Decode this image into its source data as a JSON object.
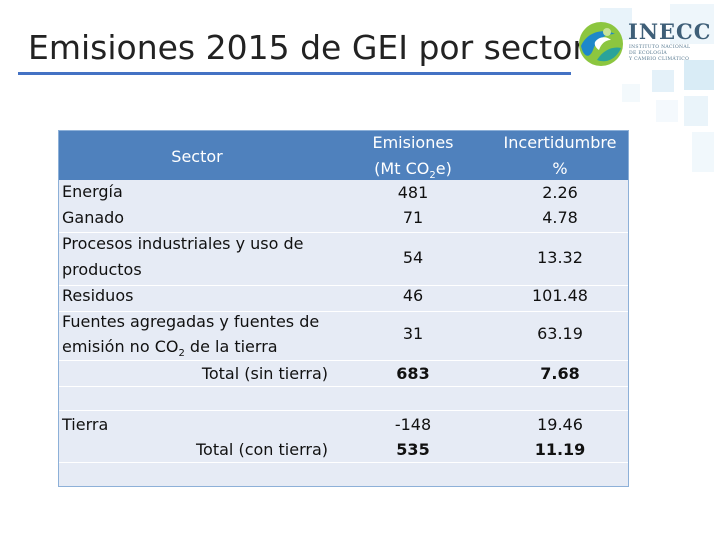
{
  "slide": {
    "title": "Emisiones 2015 de GEI por sector",
    "accent_color": "#4472c4"
  },
  "logo": {
    "name": "INECC",
    "subtitle_lines": [
      "INSTITUTO NACIONAL",
      "DE ECOLOGÍA",
      "Y CAMBIO CLIMÁTICO"
    ],
    "colors": {
      "green": "#8cc63f",
      "blue": "#1e88c9",
      "text": "#3f5f78"
    }
  },
  "table": {
    "header_color": "#4f81bd",
    "body_color": "#e6ebf5",
    "headers": {
      "sector": "Sector",
      "emisiones_line1": "Emisiones",
      "emisiones_line2_pre": "(Mt CO",
      "emisiones_line2_sub": "2",
      "emisiones_line2_post": "e)",
      "incert_line1": "Incertidumbre",
      "incert_line2": "%"
    },
    "rows": {
      "energia": {
        "sector": "Energía",
        "emisiones": "481",
        "incertidumbre": "2.26"
      },
      "ganado": {
        "sector": "Ganado",
        "emisiones": "71",
        "incertidumbre": "4.78"
      },
      "procesos": {
        "sector_line1": "Procesos industriales y uso de",
        "sector_line2": "productos",
        "emisiones": "54",
        "incertidumbre": "13.32"
      },
      "residuos": {
        "sector": "Residuos",
        "emisiones": "46",
        "incertidumbre": "101.48"
      },
      "fuentes": {
        "sector_line1": "Fuentes agregadas y fuentes de",
        "sector_line2_pre": "emisión no CO",
        "sector_line2_sub": "2",
        "sector_line2_post": " de la tierra",
        "emisiones": "31",
        "incertidumbre": "63.19"
      },
      "total_sin": {
        "sector": "Total (sin tierra)",
        "emisiones": "683",
        "incertidumbre": "7.68"
      },
      "tierra": {
        "sector": "Tierra",
        "emisiones": "-148",
        "incertidumbre": "19.46"
      },
      "total_con": {
        "sector": "Total (con tierra)",
        "emisiones": "535",
        "incertidumbre": "11.19"
      }
    }
  }
}
